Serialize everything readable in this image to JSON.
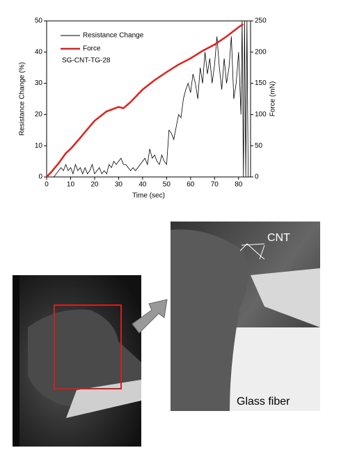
{
  "chart_data": {
    "type": "line",
    "xlabel": "Time (sec)",
    "ylabel": "Resistance Change (%)",
    "y2label": "Force (mN)",
    "annotation": "SG-CNT-TG-28",
    "xlim": [
      0,
      85
    ],
    "xticks": [
      0,
      10,
      20,
      30,
      40,
      50,
      60,
      70,
      80
    ],
    "ylim": [
      0,
      50
    ],
    "yticks": [
      0,
      10,
      20,
      30,
      40,
      50
    ],
    "y2lim": [
      0,
      250
    ],
    "y2ticks": [
      0,
      50,
      100,
      150,
      200,
      250
    ],
    "legend": "upper left",
    "series": [
      {
        "name": "Resistance Change",
        "color": "#000000",
        "x": [
          0,
          1,
          2,
          3,
          4,
          5,
          6,
          7,
          8,
          9,
          10,
          11,
          12,
          13,
          14,
          15,
          16,
          17,
          18,
          19,
          20,
          21,
          22,
          23,
          24,
          25,
          26,
          27,
          28,
          29,
          30,
          31,
          32,
          33,
          34,
          35,
          36,
          37,
          38,
          39,
          40,
          41,
          42,
          43,
          44,
          45,
          46,
          47,
          48,
          49,
          50,
          51,
          52,
          53,
          54,
          55,
          56,
          57,
          58,
          59,
          60,
          61,
          62,
          63,
          64,
          65,
          66,
          67,
          68,
          69,
          70,
          71,
          72,
          73,
          74,
          75,
          76,
          77,
          78,
          79,
          80,
          81,
          81.5,
          82,
          82.5,
          83,
          83.5,
          84
        ],
        "values": [
          0,
          0,
          0,
          0,
          1,
          2,
          3,
          2,
          4,
          2,
          3,
          1,
          4,
          2,
          3,
          1,
          3,
          1,
          2,
          4,
          1,
          2,
          3,
          1,
          2,
          1,
          4,
          3,
          5,
          4,
          5,
          6,
          4,
          4,
          3,
          2,
          3,
          2,
          3,
          4,
          5,
          6,
          4,
          9,
          6,
          7,
          5,
          4,
          7,
          5,
          4,
          15,
          14,
          12,
          16,
          20,
          19,
          25,
          28,
          30,
          27,
          33,
          30,
          25,
          35,
          30,
          40,
          33,
          38,
          30,
          36,
          45,
          35,
          28,
          38,
          30,
          35,
          45,
          25,
          30,
          40,
          20,
          50,
          0,
          50,
          0,
          50,
          0
        ]
      },
      {
        "name": "Force",
        "color": "#e0201b",
        "axis": "y2",
        "x": [
          0,
          2,
          5,
          8,
          10,
          13,
          16,
          20,
          25,
          30,
          32,
          35,
          40,
          45,
          50,
          55,
          60,
          65,
          70,
          75,
          80,
          82
        ],
        "values": [
          0,
          8,
          22,
          38,
          45,
          58,
          72,
          90,
          105,
          112,
          110,
          120,
          140,
          155,
          168,
          180,
          190,
          202,
          212,
          225,
          240,
          245
        ]
      }
    ]
  },
  "figure": {
    "labels": {
      "cnt": "CNT",
      "glass_fiber": "Glass fiber"
    }
  }
}
